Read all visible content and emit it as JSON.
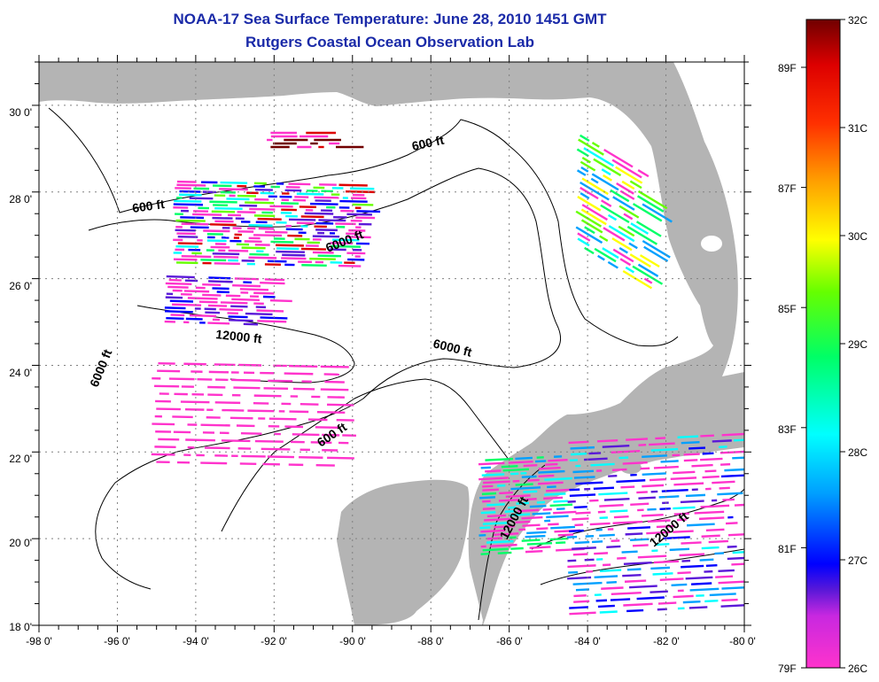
{
  "header": {
    "title": "NOAA-17 Sea Surface Temperature:  June 28, 2010 1451 GMT",
    "subtitle": "Rutgers Coastal Ocean Observation Lab"
  },
  "axes": {
    "x_ticks": [
      "-98 0'",
      "-96 0'",
      "-94 0'",
      "-92 0'",
      "-90 0'",
      "-88 0'",
      "-86 0'",
      "-84 0'",
      "-82 0'",
      "-80 0'"
    ],
    "y_ticks": [
      "30 0'",
      "28 0'",
      "26 0'",
      "24 0'",
      "22 0'",
      "20 0'",
      "18 0'"
    ],
    "x_range": [
      -98,
      -80
    ],
    "y_range": [
      18,
      31
    ]
  },
  "contour_labels": {
    "c1": "600 ft",
    "c2": "600 ft",
    "c3": "6000 ft",
    "c4": "12000 ft",
    "c5": "6000 ft",
    "c6": "6000 ft",
    "c7": "600 ft",
    "c8": "12000 ft",
    "c9": "12000 ft"
  },
  "colorbar": {
    "celsius": [
      "32C",
      "31C",
      "30C",
      "29C",
      "28C",
      "27C",
      "26C"
    ],
    "fahrenheit": [
      "89F",
      "87F",
      "85F",
      "83F",
      "81F",
      "79F"
    ],
    "colors": [
      "#ff33cc",
      "#5a18d8",
      "#0000ff",
      "#00a0ff",
      "#00ffff",
      "#00ff66",
      "#66ff00",
      "#ffff00",
      "#ffa000",
      "#ff3000",
      "#dd0000",
      "#700000"
    ]
  },
  "colors": {
    "land": "#b4b4b4",
    "water": "#ffffff",
    "grid": "#808080"
  }
}
